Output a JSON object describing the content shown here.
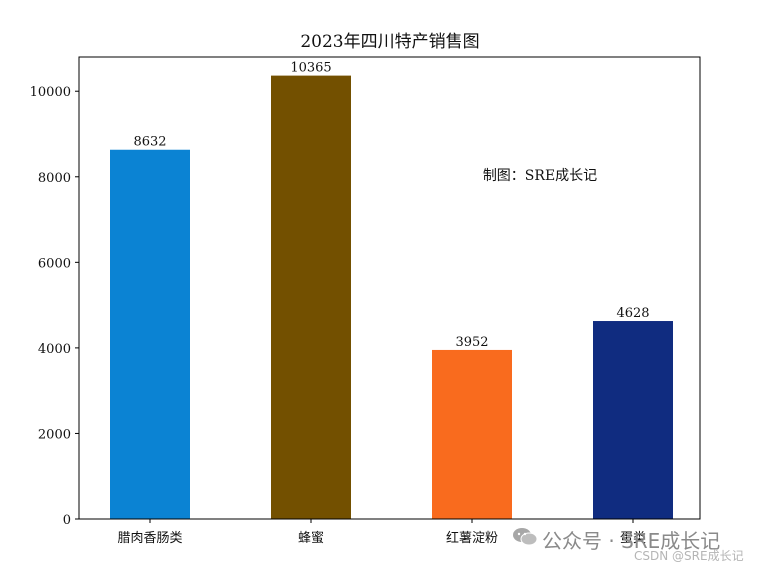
{
  "chart_data": {
    "type": "bar",
    "title": "2023年四川特产销售图",
    "xlabel": "",
    "ylabel": "",
    "categories": [
      "腊肉香肠类",
      "蜂蜜",
      "红薯淀粉",
      "蛋类"
    ],
    "values": [
      8632,
      10365,
      3952,
      4628
    ],
    "data_labels": [
      "8632",
      "10365",
      "3952",
      "4628"
    ],
    "bar_colors": [
      "#0b83d3",
      "#735000",
      "#f96b1e",
      "#102c80"
    ],
    "ylim": [
      0,
      10800
    ],
    "yticks": [
      0,
      2000,
      4000,
      6000,
      8000,
      10000
    ],
    "ytick_labels": [
      "0",
      "2000",
      "4000",
      "6000",
      "8000",
      "10000"
    ],
    "grid": false,
    "annotation": "制图：SRE成长记"
  },
  "watermark": {
    "wechat_label": "公众号 · SRE成长记",
    "csdn_label": "CSDN @SRE成长记",
    "icon": "wechat-icon"
  }
}
